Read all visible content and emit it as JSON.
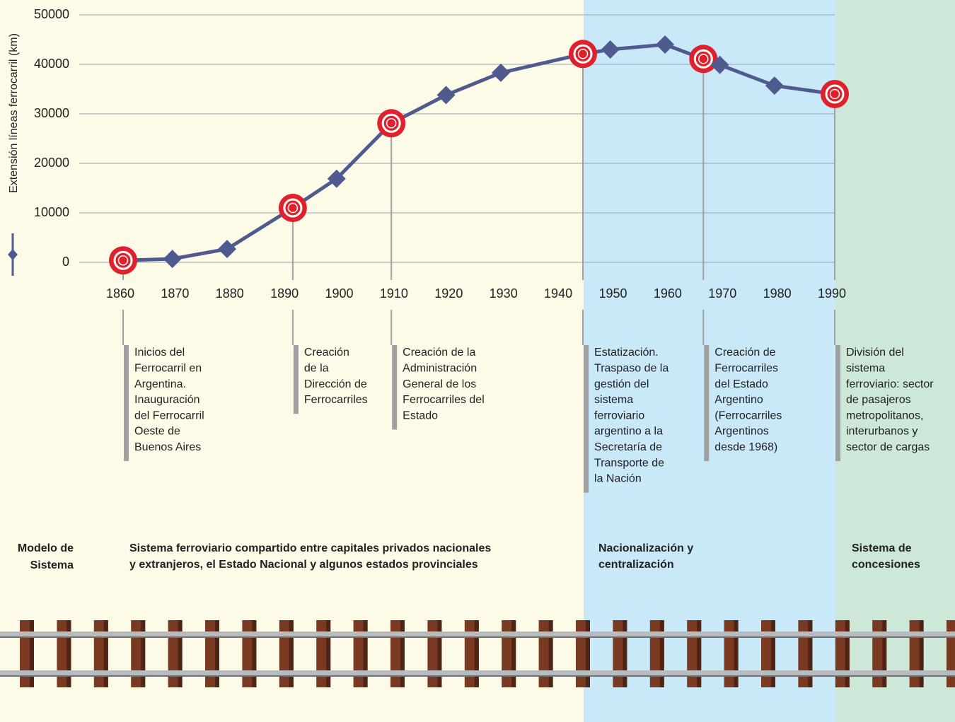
{
  "chart_data": {
    "type": "line",
    "y_label": "Extensión líneas ferrocarril (km)",
    "xlim": [
      1860,
      1990
    ],
    "xticks": [
      1860,
      1870,
      1880,
      1890,
      1900,
      1910,
      1920,
      1930,
      1940,
      1950,
      1960,
      1970,
      1980,
      1990
    ],
    "ylim": [
      0,
      50000
    ],
    "yticks": [
      0,
      10000,
      20000,
      30000,
      40000,
      50000
    ],
    "grid": true,
    "series": [
      {
        "color": "#4f5a8f",
        "x": [
          1860,
          1869,
          1879,
          1891,
          1899,
          1909,
          1919,
          1929,
          1944,
          1949,
          1959,
          1966,
          1969,
          1979,
          1990
        ],
        "values": [
          400,
          700,
          2700,
          11000,
          16900,
          28100,
          33800,
          38300,
          42100,
          43000,
          44000,
          41100,
          39900,
          35700,
          34000
        ]
      }
    ],
    "milestones": [
      {
        "x": 1860,
        "lines": [
          "Inicios del",
          "Ferrocarril en",
          "Argentina.",
          "Inauguración",
          "del Ferrocarril",
          "Oeste de",
          "Buenos Aires"
        ]
      },
      {
        "x": 1891,
        "lines": [
          "Creación",
          "de la",
          "Dirección de",
          "Ferrocarriles"
        ]
      },
      {
        "x": 1909,
        "lines": [
          "Creación de la",
          "Administración",
          "General de los",
          "Ferrocarriles del",
          "Estado"
        ]
      },
      {
        "x": 1944,
        "lines": [
          "Estatización.",
          "Traspaso de la",
          "gestión del",
          "sistema",
          "ferroviario",
          "argentino a la",
          "Secretaría de",
          "Transporte de",
          "la Nación"
        ]
      },
      {
        "x": 1966,
        "lines": [
          "Creación de",
          "Ferrocarriles",
          "del Estado",
          "Argentino",
          "(Ferrocarriles",
          "Argentinos",
          "desde 1968)"
        ]
      },
      {
        "x": 1990,
        "lines": [
          "División del",
          "sistema",
          "ferroviario: sector",
          "de pasajeros",
          "metropolitanos,",
          "interurbanos y",
          "sector de cargas"
        ]
      }
    ],
    "model_label": [
      "Modelo de",
      "Sistema"
    ],
    "eras": [
      {
        "lines": [
          "Sistema ferroviario compartido entre capitales privados nacionales",
          "y extranjeros, el Estado Nacional y algunos estados provinciales"
        ]
      },
      {
        "lines": [
          "Nacionalización y",
          "centralización"
        ]
      },
      {
        "lines": [
          "Sistema de",
          "concesiones"
        ]
      }
    ]
  }
}
